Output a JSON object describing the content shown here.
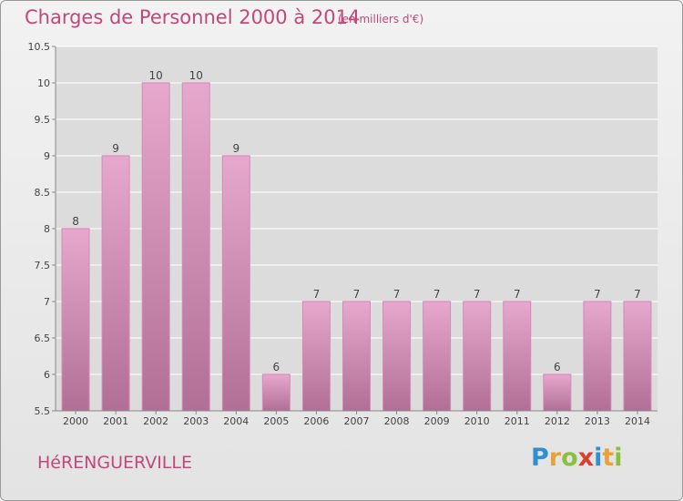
{
  "header": {
    "title": "Charges de Personnel 2000 à 2014",
    "subtitle": "(en milliers d'€)"
  },
  "footer": {
    "town": "HéRENGUERVILLE",
    "logo_letters": [
      "P",
      "r",
      "o",
      "x",
      "i",
      "t",
      "i"
    ],
    "logo_colors": [
      "#2f8fd0",
      "#e9a23b",
      "#8bbf3f",
      "#d8412f",
      "#2f8fd0",
      "#e9a23b",
      "#8bbf3f"
    ]
  },
  "chart_data": {
    "type": "bar",
    "categories": [
      "2000",
      "2001",
      "2002",
      "2003",
      "2004",
      "2005",
      "2006",
      "2007",
      "2008",
      "2009",
      "2010",
      "2011",
      "2012",
      "2013",
      "2014"
    ],
    "values": [
      8,
      9,
      10,
      10,
      9,
      6,
      7,
      7,
      7,
      7,
      7,
      7,
      6,
      7,
      7
    ],
    "data_labels": [
      "8",
      "9",
      "10",
      "10",
      "9",
      "6",
      "7",
      "7",
      "7",
      "7",
      "7",
      "7",
      "6",
      "7",
      "7"
    ],
    "ylim": [
      5.5,
      10.5
    ],
    "yticks": [
      5.5,
      6,
      6.5,
      7,
      7.5,
      8,
      8.5,
      9,
      9.5,
      10,
      10.5
    ],
    "ytick_labels": [
      "5.5",
      "6",
      "6.5",
      "7",
      "7.5",
      "8",
      "8.5",
      "9",
      "9.5",
      "10",
      "10.5"
    ],
    "grid": true,
    "bar_color_top": "#e6a8cc",
    "bar_color_bottom": "#b26f96",
    "bar_edge_color": "#d88ab6"
  }
}
